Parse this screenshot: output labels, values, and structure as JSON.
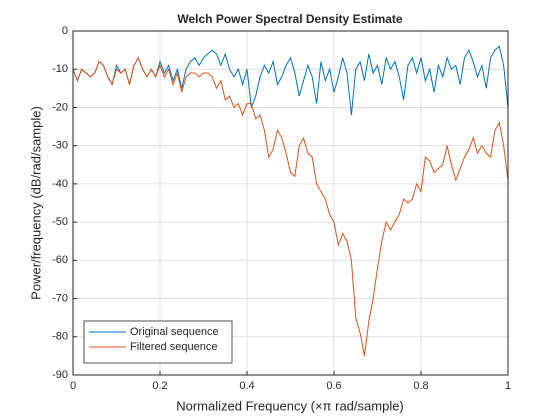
{
  "chart_data": {
    "type": "line",
    "title": "Welch Power Spectral Density Estimate",
    "x_label": "Normalized  Frequency  (×π  rad/sample)",
    "y_label": "Power/frequency (dB/rad/sample)",
    "x": [
      0,
      0.01,
      0.02,
      0.03,
      0.04,
      0.05,
      0.06,
      0.07,
      0.08,
      0.09,
      0.1,
      0.11,
      0.12,
      0.13,
      0.14,
      0.15,
      0.16,
      0.17,
      0.18,
      0.19,
      0.2,
      0.21,
      0.22,
      0.23,
      0.24,
      0.25,
      0.26,
      0.27,
      0.28,
      0.29,
      0.3,
      0.31,
      0.32,
      0.33,
      0.34,
      0.35,
      0.36,
      0.37,
      0.38,
      0.39,
      0.4,
      0.41,
      0.42,
      0.43,
      0.44,
      0.45,
      0.46,
      0.47,
      0.48,
      0.49,
      0.5,
      0.51,
      0.52,
      0.53,
      0.54,
      0.55,
      0.56,
      0.57,
      0.58,
      0.59,
      0.6,
      0.61,
      0.62,
      0.63,
      0.64,
      0.65,
      0.66,
      0.67,
      0.68,
      0.69,
      0.7,
      0.71,
      0.72,
      0.73,
      0.74,
      0.75,
      0.76,
      0.77,
      0.78,
      0.79,
      0.8,
      0.81,
      0.82,
      0.83,
      0.84,
      0.85,
      0.86,
      0.87,
      0.88,
      0.89,
      0.9,
      0.91,
      0.92,
      0.93,
      0.94,
      0.95,
      0.96,
      0.97,
      0.98,
      0.99,
      1
    ],
    "series": [
      {
        "name": "Original sequence",
        "color": "#0072bd",
        "values": [
          -10,
          -13,
          -10,
          -11,
          -12,
          -11,
          -8,
          -9,
          -12,
          -14,
          -9,
          -11,
          -10,
          -14,
          -9,
          -7,
          -10,
          -12,
          -10,
          -12,
          -8,
          -11,
          -9,
          -13,
          -10,
          -15,
          -10,
          -8,
          -7,
          -9,
          -7,
          -6,
          -5,
          -6,
          -9,
          -6,
          -10,
          -12,
          -10,
          -14,
          -10,
          -20,
          -17,
          -12,
          -9,
          -11,
          -8,
          -14,
          -12,
          -9,
          -7,
          -11,
          -17,
          -13,
          -9,
          -12,
          -19,
          -8,
          -13,
          -10,
          -16,
          -12,
          -7,
          -11,
          -22,
          -10,
          -8,
          -13,
          -6,
          -11,
          -9,
          -14,
          -7,
          -10,
          -8,
          -12,
          -18,
          -9,
          -7,
          -11,
          -7,
          -13,
          -10,
          -16,
          -9,
          -12,
          -7,
          -10,
          -9,
          -14,
          -7,
          -5,
          -8,
          -12,
          -9,
          -15,
          -7,
          -5,
          -4,
          -9,
          -20
        ]
      },
      {
        "name": "Filtered sequence",
        "color": "#d95319",
        "values": [
          -10,
          -13,
          -10,
          -11,
          -12,
          -11,
          -8,
          -9,
          -12,
          -14,
          -10,
          -11,
          -10,
          -14,
          -9,
          -7,
          -10,
          -12,
          -10,
          -12,
          -9,
          -12,
          -10,
          -14,
          -11,
          -16,
          -12,
          -11,
          -11,
          -12,
          -11,
          -11,
          -12,
          -15,
          -13,
          -18,
          -17,
          -20,
          -19,
          -22,
          -19,
          -19,
          -23,
          -22,
          -26,
          -33,
          -31,
          -26,
          -28,
          -32,
          -37,
          -38,
          -30,
          -28,
          -32,
          -33,
          -40,
          -42,
          -44,
          -48,
          -50,
          -56,
          -53,
          -55,
          -60,
          -75,
          -79,
          -85,
          -76,
          -70,
          -62,
          -55,
          -50,
          -52,
          -50,
          -48,
          -44,
          -45,
          -44,
          -40,
          -42,
          -33,
          -34,
          -37,
          -36,
          -35,
          -30,
          -35,
          -39,
          -36,
          -33,
          -31,
          -28,
          -32,
          -30,
          -32,
          -33,
          -26,
          -24,
          -30,
          -39
        ]
      }
    ],
    "xlim": [
      0,
      1
    ],
    "ylim": [
      -90,
      0
    ],
    "xticks": [
      0,
      0.2,
      0.4,
      0.6,
      0.8,
      1
    ],
    "yticks": [
      -90,
      -80,
      -70,
      -60,
      -50,
      -40,
      -30,
      -20,
      -10,
      0
    ],
    "grid": true,
    "legend_position": "lower-left"
  }
}
